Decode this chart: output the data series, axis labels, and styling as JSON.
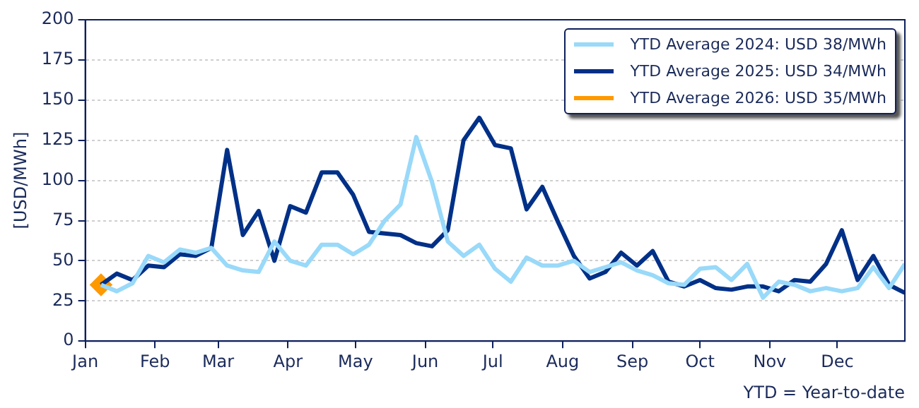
{
  "chart_data": {
    "type": "line",
    "ylabel": "[USD/MWh]",
    "annotations": [
      "YTD = Year-to-date"
    ],
    "x": [
      "--01-08",
      "--01-15",
      "--01-22",
      "--01-29",
      "--02-05",
      "--02-12",
      "--02-19",
      "--02-26",
      "--03-05",
      "--03-12",
      "--03-19",
      "--03-26",
      "--04-02",
      "--04-09",
      "--04-16",
      "--04-23",
      "--04-30",
      "--05-07",
      "--05-14",
      "--05-21",
      "--05-28",
      "--06-04",
      "--06-11",
      "--06-18",
      "--06-25",
      "--07-02",
      "--07-09",
      "--07-16",
      "--07-23",
      "--07-30",
      "--08-06",
      "--08-13",
      "--08-20",
      "--08-27",
      "--09-03",
      "--09-10",
      "--09-17",
      "--09-24",
      "--10-01",
      "--10-08",
      "--10-15",
      "--10-22",
      "--10-29",
      "--11-05",
      "--11-12",
      "--11-19",
      "--11-26",
      "--12-03",
      "--12-10",
      "--12-17",
      "--12-24",
      "--12-31"
    ],
    "series": [
      {
        "name": "YTD Average 2024: USD 38/MWh",
        "color": "#99d9f9",
        "values": [
          35,
          31,
          36,
          53,
          49,
          57,
          55,
          58,
          47,
          44,
          43,
          62,
          50,
          47,
          60,
          60,
          54,
          60,
          75,
          85,
          127,
          99,
          62,
          53,
          60,
          45,
          37,
          52,
          47,
          47,
          50,
          43,
          46,
          49,
          44,
          41,
          36,
          35,
          45,
          46,
          38,
          48,
          27,
          37,
          35,
          31,
          33,
          31,
          33,
          46,
          33,
          48
        ]
      },
      {
        "name": "YTD Average 2025: USD 34/MWh",
        "color": "#003087",
        "values": [
          35,
          42,
          38,
          47,
          46,
          54,
          53,
          58,
          119,
          66,
          81,
          50,
          84,
          80,
          105,
          105,
          91,
          68,
          67,
          66,
          61,
          59,
          69,
          125,
          139,
          122,
          120,
          82,
          96,
          74,
          53,
          39,
          43,
          55,
          47,
          56,
          37,
          34,
          38,
          33,
          32,
          34,
          34,
          31,
          38,
          37,
          48,
          69,
          38,
          53,
          35,
          30
        ]
      },
      {
        "name": "YTD Average 2026: USD 35/MWh",
        "color": "#ff9900",
        "marker": "diamond",
        "values": [
          35,
          null,
          null,
          null,
          null,
          null,
          null,
          null,
          null,
          null,
          null,
          null,
          null,
          null,
          null,
          null,
          null,
          null,
          null,
          null,
          null,
          null,
          null,
          null,
          null,
          null,
          null,
          null,
          null,
          null,
          null,
          null,
          null,
          null,
          null,
          null,
          null,
          null,
          null,
          null,
          null,
          null,
          null,
          null,
          null,
          null,
          null,
          null,
          null,
          null,
          null,
          null
        ]
      }
    ],
    "xlim": [
      "--01-01",
      "--12-31"
    ],
    "xticks": [
      {
        "value": "--01-01",
        "label": "Jan"
      },
      {
        "value": "--02-01",
        "label": "Feb"
      },
      {
        "value": "--03-01",
        "label": "Mar"
      },
      {
        "value": "--04-01",
        "label": "Apr"
      },
      {
        "value": "--05-01",
        "label": "May"
      },
      {
        "value": "--06-01",
        "label": "Jun"
      },
      {
        "value": "--07-01",
        "label": "Jul"
      },
      {
        "value": "--08-01",
        "label": "Aug"
      },
      {
        "value": "--09-01",
        "label": "Sep"
      },
      {
        "value": "--10-01",
        "label": "Oct"
      },
      {
        "value": "--11-01",
        "label": "Nov"
      },
      {
        "value": "--12-01",
        "label": "Dec"
      }
    ],
    "ylim": [
      0,
      200
    ],
    "yticks": [
      0,
      25,
      50,
      75,
      100,
      125,
      150,
      175,
      200
    ],
    "grid": "y",
    "legend": "top right"
  }
}
